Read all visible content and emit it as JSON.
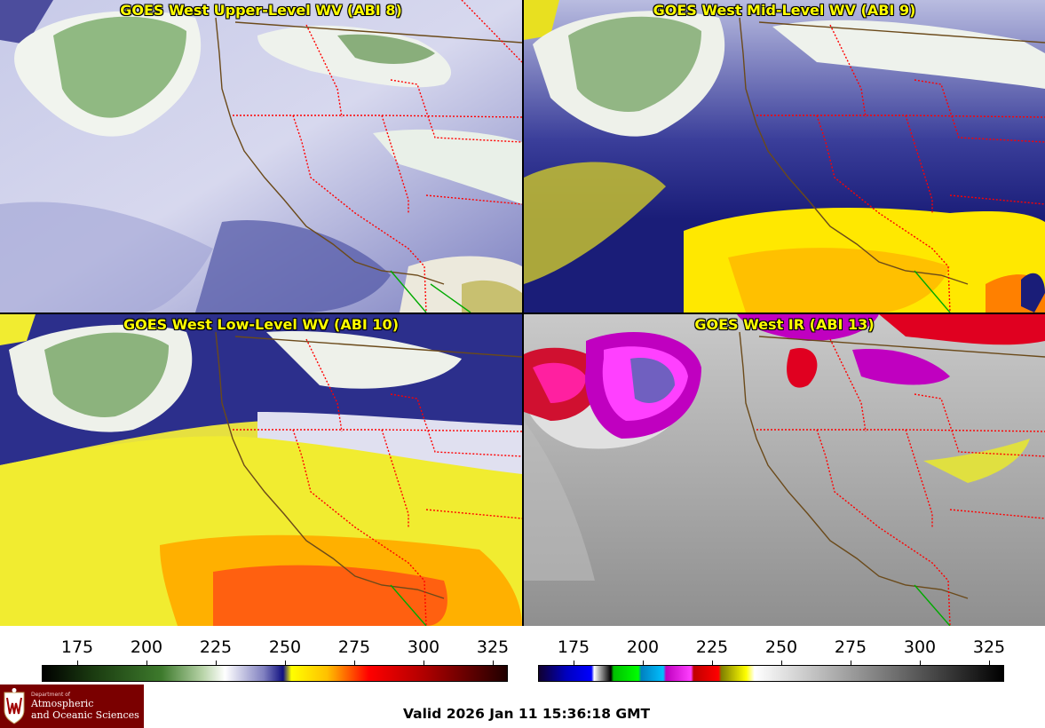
{
  "panels": [
    {
      "title": "GOES West Upper-Level WV (ABI 8)",
      "product": "upper-level-wv",
      "colormap": "wv"
    },
    {
      "title": "GOES West Mid-Level WV (ABI 9)",
      "product": "mid-level-wv",
      "colormap": "wv"
    },
    {
      "title": "GOES West Low-Level WV (ABI 10)",
      "product": "low-level-wv",
      "colormap": "wv"
    },
    {
      "title": "GOES West IR (ABI 13)",
      "product": "ir",
      "colormap": "ir"
    }
  ],
  "colorbars": [
    {
      "name": "wv",
      "ticks": [
        "175",
        "200",
        "225",
        "250",
        "275",
        "300",
        "325"
      ],
      "range": [
        162,
        330
      ],
      "stops": [
        {
          "v": 162,
          "c": "#000000"
        },
        {
          "v": 180,
          "c": "#1a3a10"
        },
        {
          "v": 205,
          "c": "#3d7a2c"
        },
        {
          "v": 220,
          "c": "#b8d4a8"
        },
        {
          "v": 228,
          "c": "#ffffff"
        },
        {
          "v": 242,
          "c": "#8080c0"
        },
        {
          "v": 249,
          "c": "#101080"
        },
        {
          "v": 252,
          "c": "#ffff00"
        },
        {
          "v": 265,
          "c": "#ffc000"
        },
        {
          "v": 280,
          "c": "#ff0000"
        },
        {
          "v": 300,
          "c": "#b00000"
        },
        {
          "v": 330,
          "c": "#200000"
        }
      ]
    },
    {
      "name": "ir",
      "ticks": [
        "175",
        "200",
        "225",
        "250",
        "275",
        "300",
        "325"
      ],
      "range": [
        162,
        330
      ],
      "stops": [
        {
          "v": 162,
          "c": "#100030"
        },
        {
          "v": 172,
          "c": "#0000c0"
        },
        {
          "v": 181,
          "c": "#0000ff"
        },
        {
          "v": 182,
          "c": "#ffffff"
        },
        {
          "v": 188,
          "c": "#000000"
        },
        {
          "v": 189,
          "c": "#00c000"
        },
        {
          "v": 198,
          "c": "#00ff00"
        },
        {
          "v": 199,
          "c": "#0080c0"
        },
        {
          "v": 207,
          "c": "#00c0ff"
        },
        {
          "v": 208,
          "c": "#c000c0"
        },
        {
          "v": 217,
          "c": "#ff40ff"
        },
        {
          "v": 218,
          "c": "#c00000"
        },
        {
          "v": 227,
          "c": "#ff0000"
        },
        {
          "v": 228,
          "c": "#808000"
        },
        {
          "v": 237,
          "c": "#ffff00"
        },
        {
          "v": 240,
          "c": "#ffffff"
        },
        {
          "v": 330,
          "c": "#000000"
        }
      ]
    }
  ],
  "logo": {
    "department": "Department of",
    "line1": "Atmospheric",
    "line2": "and Oceanic Sciences"
  },
  "valid_time": "Valid 2026 Jan 11 15:36:18 GMT",
  "colors": {
    "title_text": "#ffff00",
    "border_state": "#ff0000",
    "border_coast": "#6b4a1a",
    "border_mexico": "#00aa00"
  }
}
